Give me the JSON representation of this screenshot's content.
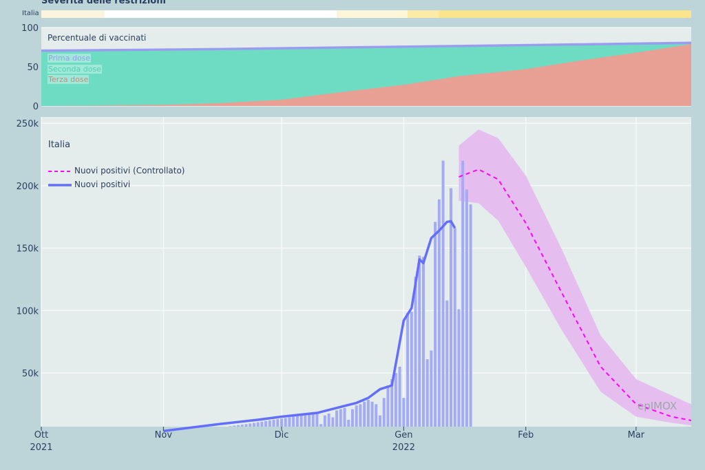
{
  "title": "Severità delle restrizioni",
  "restrictions": {
    "label": "Italia",
    "segments": [
      {
        "from": "2021-10-01",
        "to": "2021-10-17",
        "color": "#fbf5df"
      },
      {
        "from": "2021-10-17",
        "to": "2021-12-15",
        "color": "#ffffff"
      },
      {
        "from": "2021-12-15",
        "to": "2022-01-02",
        "color": "#fdf6d8"
      },
      {
        "from": "2022-01-02",
        "to": "2022-01-10",
        "color": "#fbeba6"
      },
      {
        "from": "2022-01-10",
        "to": "2022-03-15",
        "color": "#fbe48a"
      }
    ]
  },
  "vaccine_panel": {
    "title": "Percentuale di vaccinati",
    "legend": [
      "Prima dose",
      "Seconda dose",
      "Terza dose"
    ],
    "colors": {
      "prima": "#9a9cf0",
      "seconda": "#6ddcc3",
      "terza": "#e89f94"
    }
  },
  "main_panel": {
    "country": "Italia",
    "watermark": "epIMOX",
    "legend": [
      "Nuovi positivi (Controllato)",
      "Nuovi positivi"
    ],
    "colors": {
      "line": "#636efa",
      "bars": "#a3abf5",
      "forecast": "#ff00ff",
      "band": "#e6bdef"
    }
  },
  "chart_data": [
    {
      "type": "area",
      "title": "Percentuale di vaccinati",
      "x_range": [
        "2021-10-01",
        "2022-03-15"
      ],
      "ylim": [
        0,
        100
      ],
      "yticks": [
        0,
        50,
        100
      ],
      "series": [
        {
          "name": "Prima dose",
          "x": [
            "2021-10-01",
            "2021-11-15",
            "2021-12-15",
            "2022-01-15",
            "2022-02-15",
            "2022-03-15"
          ],
          "values": [
            72,
            74,
            76,
            78,
            80,
            82
          ]
        },
        {
          "name": "Seconda dose",
          "x": [
            "2021-10-01",
            "2021-11-15",
            "2021-12-15",
            "2022-01-15",
            "2022-02-15",
            "2022-03-15"
          ],
          "values": [
            69,
            71,
            73,
            75,
            77,
            79
          ]
        },
        {
          "name": "Terza dose",
          "x": [
            "2021-10-01",
            "2021-10-15",
            "2021-11-01",
            "2021-11-15",
            "2021-12-01",
            "2021-12-15",
            "2022-01-01",
            "2022-01-15",
            "2022-02-01",
            "2022-02-15",
            "2022-03-01",
            "2022-03-15"
          ],
          "values": [
            0,
            0.5,
            1.5,
            3.5,
            8,
            17,
            27,
            38,
            47,
            58,
            68,
            79
          ]
        }
      ]
    },
    {
      "type": "line",
      "x_range": [
        "2021-10-01",
        "2022-03-15"
      ],
      "ylim": [
        7000,
        255000
      ],
      "yticks": [
        50000,
        100000,
        150000,
        200000,
        250000
      ],
      "ytick_labels": [
        "50k",
        "100k",
        "150k",
        "200k",
        "250k"
      ],
      "xticks": [
        "2021-10-01",
        "2021-11-01",
        "2021-12-01",
        "2022-01-01",
        "2022-02-01",
        "2022-03-01"
      ],
      "xtick_labels": [
        "Ott",
        "Nov",
        "Dic",
        "Gen",
        "Feb",
        "Mar"
      ],
      "xtick_year_labels": [
        "2021",
        "",
        "",
        "2022",
        "",
        ""
      ],
      "bars": {
        "start": "2021-11-01",
        "values": [
          3000,
          3200,
          3400,
          3600,
          3800,
          4000,
          4200,
          4500,
          4800,
          5000,
          5200,
          5500,
          5800,
          6100,
          6400,
          6700,
          7000,
          7400,
          7800,
          8200,
          8600,
          9000,
          9500,
          10000,
          10500,
          11000,
          11500,
          12000,
          12500,
          13000,
          13500,
          14000,
          14500,
          15000,
          15500,
          16000,
          16500,
          17000,
          17500,
          18000,
          9000,
          16000,
          17500,
          14500,
          20000,
          21000,
          22000,
          12500,
          21000,
          24000,
          25000,
          27000,
          28500,
          27000,
          25000,
          16000,
          30000,
          40000,
          45000,
          50000,
          55000,
          30000,
          98000,
          99000,
          127000,
          144000,
          143000,
          61000,
          68000,
          171000,
          189000,
          220000,
          108000,
          198000,
          166000,
          101000,
          220000,
          197000,
          185000
        ]
      },
      "series": [
        {
          "name": "Nuovi positivi",
          "x": [
            "2021-11-01",
            "2021-11-15",
            "2021-11-25",
            "2021-12-01",
            "2021-12-10",
            "2021-12-20",
            "2021-12-23",
            "2021-12-26",
            "2021-12-29",
            "2022-01-01",
            "2022-01-03",
            "2022-01-05",
            "2022-01-06",
            "2022-01-08",
            "2022-01-10",
            "2022-01-12",
            "2022-01-13",
            "2022-01-14"
          ],
          "values": [
            3500,
            9000,
            12500,
            15000,
            18000,
            26000,
            30000,
            37000,
            40000,
            92000,
            102000,
            141000,
            138000,
            158000,
            164000,
            171000,
            171500,
            166000
          ]
        },
        {
          "name": "Nuovi positivi (Controllato)",
          "x": [
            "2022-01-15",
            "2022-01-20",
            "2022-01-25",
            "2022-02-01",
            "2022-02-10",
            "2022-02-20",
            "2022-03-01",
            "2022-03-10",
            "2022-03-15"
          ],
          "values": [
            207000,
            213000,
            205000,
            170000,
            115000,
            55000,
            25000,
            15000,
            12000
          ]
        },
        {
          "name": "Forecast upper",
          "x": [
            "2022-01-15",
            "2022-01-20",
            "2022-01-25",
            "2022-02-01",
            "2022-02-10",
            "2022-02-20",
            "2022-03-01",
            "2022-03-10",
            "2022-03-15"
          ],
          "values": [
            232000,
            245000,
            238000,
            208000,
            150000,
            80000,
            45000,
            32000,
            25000
          ]
        },
        {
          "name": "Forecast lower",
          "x": [
            "2022-01-15",
            "2022-01-20",
            "2022-01-25",
            "2022-02-01",
            "2022-02-10",
            "2022-02-20",
            "2022-03-01",
            "2022-03-10",
            "2022-03-15"
          ],
          "values": [
            188000,
            186000,
            172000,
            135000,
            85000,
            35000,
            15000,
            10000,
            8000
          ]
        }
      ]
    }
  ]
}
